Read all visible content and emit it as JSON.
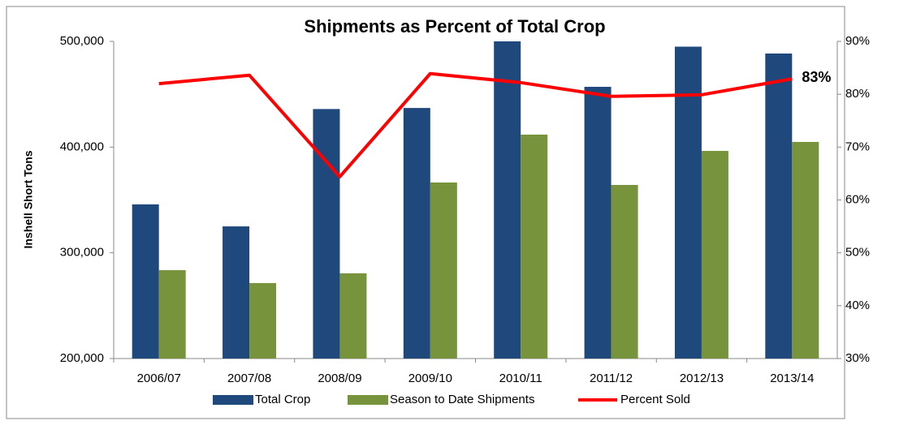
{
  "chart_data": {
    "type": "bar-line",
    "title": "Shipments as Percent of Total Crop",
    "ylabel": "Inshell Short Tons",
    "categories": [
      "2006/07",
      "2007/08",
      "2008/09",
      "2009/10",
      "2010/11",
      "2011/12",
      "2012/13",
      "2013/14"
    ],
    "series": [
      {
        "name": "Total Crop",
        "type": "bar",
        "color": "#1f497d",
        "values": [
          345800,
          325000,
          436000,
          437000,
          500000,
          457000,
          495000,
          488500
        ]
      },
      {
        "name": "Season to Date Shipments",
        "type": "bar",
        "color": "#77933c",
        "values": [
          283600,
          271400,
          280600,
          366500,
          411800,
          364200,
          396400,
          404900
        ]
      },
      {
        "name": "Percent Sold",
        "type": "line",
        "axis": "y2",
        "color": "#ff0000",
        "values": [
          82.0,
          83.6,
          64.4,
          83.9,
          82.2,
          79.6,
          79.9,
          82.9
        ],
        "value_labels": [
          null,
          null,
          null,
          null,
          null,
          null,
          null,
          "83%"
        ]
      }
    ],
    "ylim": [
      200000,
      500000
    ],
    "yticks": [
      {
        "value": 200000,
        "label": "200,000"
      },
      {
        "value": 300000,
        "label": "300,000"
      },
      {
        "value": 400000,
        "label": "400,000"
      },
      {
        "value": 500000,
        "label": "500,000"
      }
    ],
    "y2lim": [
      30,
      90
    ],
    "y2ticks": [
      {
        "value": 30,
        "label": "30%"
      },
      {
        "value": 40,
        "label": "40%"
      },
      {
        "value": 50,
        "label": "50%"
      },
      {
        "value": 60,
        "label": "60%"
      },
      {
        "value": 70,
        "label": "70%"
      },
      {
        "value": 80,
        "label": "80%"
      },
      {
        "value": 90,
        "label": "90%"
      }
    ],
    "legend": "bottom"
  }
}
